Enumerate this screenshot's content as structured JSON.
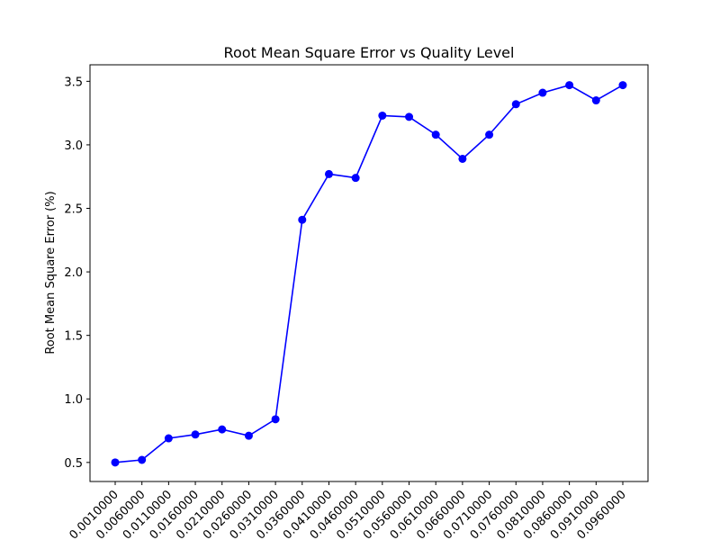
{
  "chart_data": {
    "type": "line",
    "title": "Root Mean Square Error vs Quality Level",
    "xlabel": "",
    "ylabel": "Root Mean Square Error (%)",
    "categories": [
      "0.0010000",
      "0.0060000",
      "0.0110000",
      "0.0160000",
      "0.0210000",
      "0.0260000",
      "0.0310000",
      "0.0360000",
      "0.0410000",
      "0.0460000",
      "0.0510000",
      "0.0560000",
      "0.0610000",
      "0.0660000",
      "0.0710000",
      "0.0760000",
      "0.0810000",
      "0.0860000",
      "0.0910000",
      "0.0960000"
    ],
    "series": [
      {
        "values": [
          0.5,
          0.52,
          0.69,
          0.72,
          0.76,
          0.71,
          0.84,
          2.41,
          2.77,
          2.74,
          3.23,
          3.22,
          3.08,
          2.89,
          3.08,
          3.32,
          3.41,
          3.47,
          3.35,
          3.47
        ],
        "color": "#0000ff",
        "marker": "circle"
      }
    ],
    "yticks": [
      "0.5",
      "1.0",
      "1.5",
      "2.0",
      "2.5",
      "3.0",
      "3.5"
    ],
    "ylim": [
      0.35,
      3.63
    ],
    "grid": false,
    "legend": "none"
  }
}
